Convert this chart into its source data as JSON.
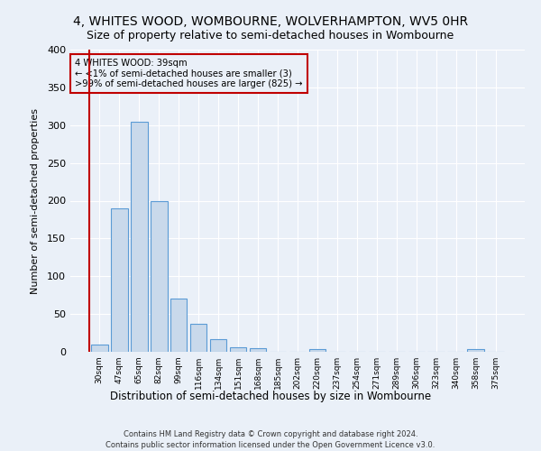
{
  "title": "4, WHITES WOOD, WOMBOURNE, WOLVERHAMPTON, WV5 0HR",
  "subtitle": "Size of property relative to semi-detached houses in Wombourne",
  "xlabel": "Distribution of semi-detached houses by size in Wombourne",
  "ylabel": "Number of semi-detached properties",
  "footnote1": "Contains HM Land Registry data © Crown copyright and database right 2024.",
  "footnote2": "Contains public sector information licensed under the Open Government Licence v3.0.",
  "categories": [
    "30sqm",
    "47sqm",
    "65sqm",
    "82sqm",
    "99sqm",
    "116sqm",
    "134sqm",
    "151sqm",
    "168sqm",
    "185sqm",
    "202sqm",
    "220sqm",
    "237sqm",
    "254sqm",
    "271sqm",
    "289sqm",
    "306sqm",
    "323sqm",
    "340sqm",
    "358sqm",
    "375sqm"
  ],
  "values": [
    10,
    190,
    305,
    200,
    70,
    37,
    17,
    6,
    5,
    0,
    0,
    3,
    0,
    0,
    0,
    0,
    0,
    0,
    0,
    3,
    0
  ],
  "bar_color": "#c9d9eb",
  "bar_edge_color": "#5b9bd5",
  "highlight_color": "#c00000",
  "annotation_line1": "4 WHITES WOOD: 39sqm",
  "annotation_line2": "← <1% of semi-detached houses are smaller (3)",
  "annotation_line3": ">99% of semi-detached houses are larger (825) →",
  "annotation_box_color": "#c00000",
  "ylim": [
    0,
    400
  ],
  "yticks": [
    0,
    50,
    100,
    150,
    200,
    250,
    300,
    350,
    400
  ],
  "background_color": "#eaf0f8",
  "grid_color": "#ffffff",
  "title_fontsize": 10,
  "subtitle_fontsize": 9,
  "bar_width": 0.85
}
